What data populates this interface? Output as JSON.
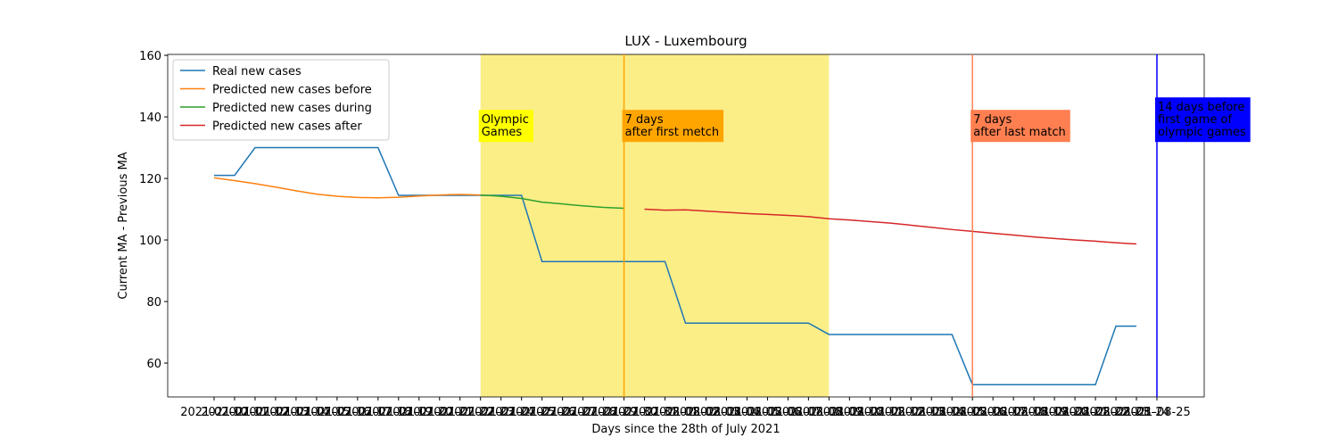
{
  "chart_data": {
    "type": "line",
    "title": "LUX - Luxembourg",
    "xlabel": "Days since the 28th of July 2021",
    "ylabel": "Current MA - Previous MA",
    "categories": [
      "2021-07-10",
      "2021-07-11",
      "2021-07-12",
      "2021-07-13",
      "2021-07-14",
      "2021-07-15",
      "2021-07-16",
      "2021-07-17",
      "2021-07-18",
      "2021-07-19",
      "2021-07-20",
      "2021-07-21",
      "2021-07-22",
      "2021-07-23",
      "2021-07-24",
      "2021-07-25",
      "2021-07-26",
      "2021-07-27",
      "2021-07-28",
      "2021-07-29",
      "2021-07-30",
      "2021-07-31",
      "2021-08-01",
      "2021-08-02",
      "2021-08-03",
      "2021-08-04",
      "2021-08-05",
      "2021-08-06",
      "2021-08-07",
      "2021-08-08",
      "2021-08-09",
      "2021-08-10",
      "2021-08-11",
      "2021-08-12",
      "2021-08-13",
      "2021-08-14",
      "2021-08-15",
      "2021-08-16",
      "2021-08-17",
      "2021-08-18",
      "2021-08-19",
      "2021-08-20",
      "2021-08-21",
      "2021-08-22",
      "2021-08-23",
      "2021-08-24",
      "2021-08-25"
    ],
    "ylim": [
      49,
      160.3
    ],
    "yticks": [
      60,
      80,
      100,
      120,
      140,
      160
    ],
    "legend": "upper left",
    "series": [
      {
        "name": "Real new cases",
        "color": "#1f77b4",
        "values": [
          121,
          121,
          130,
          130,
          130,
          130,
          130,
          130,
          130,
          114.5,
          114.5,
          114.5,
          114.5,
          114.5,
          114.5,
          114.5,
          93,
          93,
          93,
          93,
          93,
          93,
          93,
          73,
          73,
          73,
          73,
          73,
          73,
          73,
          69.3,
          69.3,
          69.3,
          69.3,
          69.3,
          69.3,
          69.3,
          53,
          53,
          53,
          53,
          53,
          53,
          53,
          72,
          72,
          null
        ]
      },
      {
        "name": "Predicted new cases before",
        "color": "#ff7f0e",
        "values": [
          120.2,
          119.3,
          118.3,
          117.2,
          116.0,
          114.9,
          114.2,
          113.8,
          113.7,
          113.9,
          114.3,
          114.6,
          114.8,
          114.6,
          null,
          null,
          null,
          null,
          null,
          null,
          null,
          null,
          null,
          null,
          null,
          null,
          null,
          null,
          null,
          null,
          null,
          null,
          null,
          null,
          null,
          null,
          null,
          null,
          null,
          null,
          null,
          null,
          null,
          null,
          null,
          null,
          null
        ]
      },
      {
        "name": "Predicted new cases during",
        "color": "#2ca02c",
        "values": [
          null,
          null,
          null,
          null,
          null,
          null,
          null,
          null,
          null,
          null,
          null,
          null,
          null,
          114.6,
          114.2,
          113.5,
          112.3,
          111.7,
          111.1,
          110.6,
          110.3,
          null,
          null,
          null,
          null,
          null,
          null,
          null,
          null,
          null,
          null,
          null,
          null,
          null,
          null,
          null,
          null,
          null,
          null,
          null,
          null,
          null,
          null,
          null,
          null,
          null,
          null
        ]
      },
      {
        "name": "Predicted new cases after",
        "color": "#d62728",
        "values": [
          null,
          null,
          null,
          null,
          null,
          null,
          null,
          null,
          null,
          null,
          null,
          null,
          null,
          null,
          null,
          null,
          null,
          null,
          null,
          null,
          null,
          110.0,
          109.7,
          109.8,
          109.4,
          109.0,
          108.6,
          108.3,
          108.0,
          107.6,
          106.9,
          106.5,
          106.0,
          105.5,
          104.8,
          104.1,
          103.4,
          102.8,
          102.2,
          101.6,
          101.0,
          100.5,
          100.0,
          99.6,
          99.1,
          98.7,
          null
        ]
      }
    ],
    "span": {
      "from": 13,
      "to": 30,
      "color": "#fbee87"
    },
    "vlines": [
      {
        "x": 20,
        "color": "#ffa500"
      },
      {
        "x": 37,
        "color": "#ff7f50"
      },
      {
        "x": 46,
        "color": "#0000ff"
      }
    ],
    "annotations": [
      {
        "x": 13,
        "y": 133,
        "lines": [
          "Olympic",
          "Games"
        ],
        "background": "#ffff00",
        "color": "#000000"
      },
      {
        "x": 20,
        "y": 133,
        "lines": [
          "7 days",
          "after first metch"
        ],
        "background": "#ffa500",
        "color": "#000000"
      },
      {
        "x": 37,
        "y": 133,
        "lines": [
          "7 days",
          "after last match"
        ],
        "background": "#ff7f50",
        "color": "#000000"
      },
      {
        "x": 46,
        "y": 133,
        "lines": [
          "14 days before",
          "first game of",
          "olympic games"
        ],
        "background": "#0000ff",
        "color": "#ffffff"
      }
    ]
  }
}
